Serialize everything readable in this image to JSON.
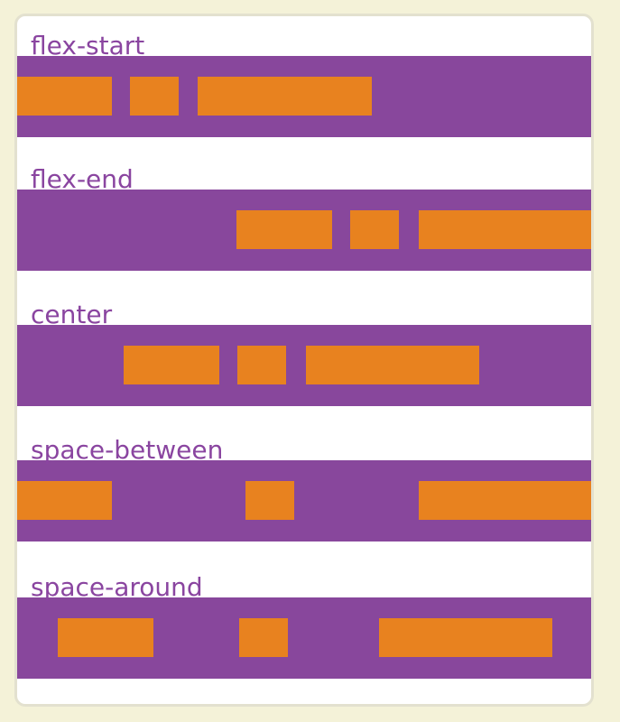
{
  "colors": {
    "page_background": "#f4f2d8",
    "card_border": "#e3e1cf",
    "container": "#88479c",
    "label": "#8a45a0",
    "item": "#e8821f"
  },
  "rows": [
    {
      "label": "flex-start"
    },
    {
      "label": "flex-end"
    },
    {
      "label": "center"
    },
    {
      "label": "space-between"
    },
    {
      "label": "space-around"
    }
  ]
}
